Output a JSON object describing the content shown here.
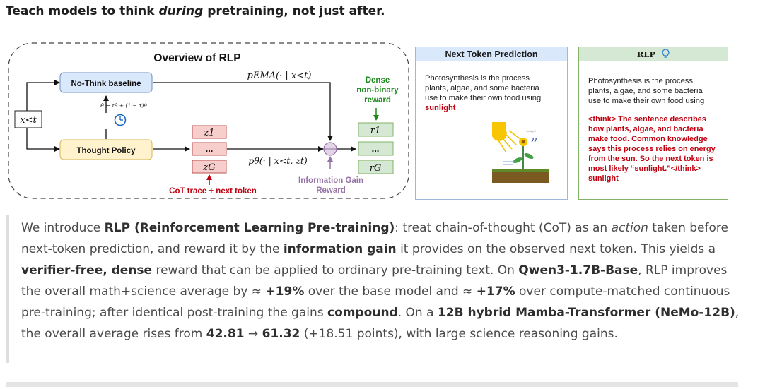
{
  "headline": {
    "part1": "Teach models to think ",
    "emph": "during",
    "part2": " pretraining, not just after."
  },
  "rlp_diagram": {
    "title": "Overview of RLP",
    "context_label": "x<t",
    "baseline_label": "No-Think baseline",
    "policy_label": "Thought Policy",
    "ema_update": "θ̄ ← τθ̄ + (1 − τ)θ",
    "p_ema_label": "pEMA(· | x<t)",
    "p_theta_label": "pθ(· | x<t, zt)",
    "thought_tokens": [
      "z1",
      "...",
      "zG"
    ],
    "reward_tokens": [
      "r1",
      "...",
      "rG"
    ],
    "cot_label": "CoT trace + next token",
    "info_gain_label": [
      "Information Gain",
      "Reward"
    ],
    "dense_reward_label": [
      "Dense",
      "non-binary",
      "reward"
    ]
  },
  "ntp_panel": {
    "title": "Next Token Prediction",
    "text_lines": [
      "Photosynthesis is the process",
      "plants, algae, and some bacteria",
      "use to make their own food using"
    ],
    "answer": "sunlight",
    "illustration_caption": "sunlight"
  },
  "rlp_panel": {
    "title": "RLP",
    "icon": "lightbulb-icon",
    "text_lines": [
      "Photosynthesis is the process",
      "plants, algae, and some bacteria",
      "use to make their own food using"
    ],
    "think_lines": [
      "<think> The sentence describes",
      "how plants, algae, and bacteria",
      "make food. Common knowledge",
      "says this process relies on energy",
      "from the sun. So the next token is",
      "most likely “sunlight.”</think>",
      "sunlight"
    ]
  },
  "paragraph": {
    "s01": "We introduce ",
    "s02": "RLP (Reinforcement Learning Pre-training)",
    "s03": ": treat chain-of-thought (CoT) as an ",
    "s04": "action",
    "s05": " taken before next-token prediction, and reward it by the ",
    "s06": "information gain",
    "s07": " it provides on the observed next token. This yields a ",
    "s08": "verifier-free, dense",
    "s09": " reward that can be applied to ordinary pre-training text. On ",
    "s10": "Qwen3-1.7B-Base",
    "s11": ", RLP improves the overall math+science average by ≈ ",
    "s12": "+19%",
    "s13": " over the base model and ≈ ",
    "s14": "+17%",
    "s15": " over compute-matched continuous pre-training; after identical post-training the gains ",
    "s16": "compound",
    "s17": ". On a ",
    "s18": "12B hybrid Mamba-Transformer (NeMo-12B)",
    "s19": ", the overall average rises from ",
    "s20": "42.81",
    "s21": " → ",
    "s22": "61.32",
    "s23": " (+18.51 points), with large science reasoning gains."
  },
  "colors": {
    "blue_box": "#dae8fc",
    "yellow_box": "#fff2cc",
    "red_box": "#f8cecc",
    "green_box": "#d5e8d4",
    "green_text": "#1a8a1a",
    "purple": "#9673a6",
    "red_text": "#c0000f"
  }
}
